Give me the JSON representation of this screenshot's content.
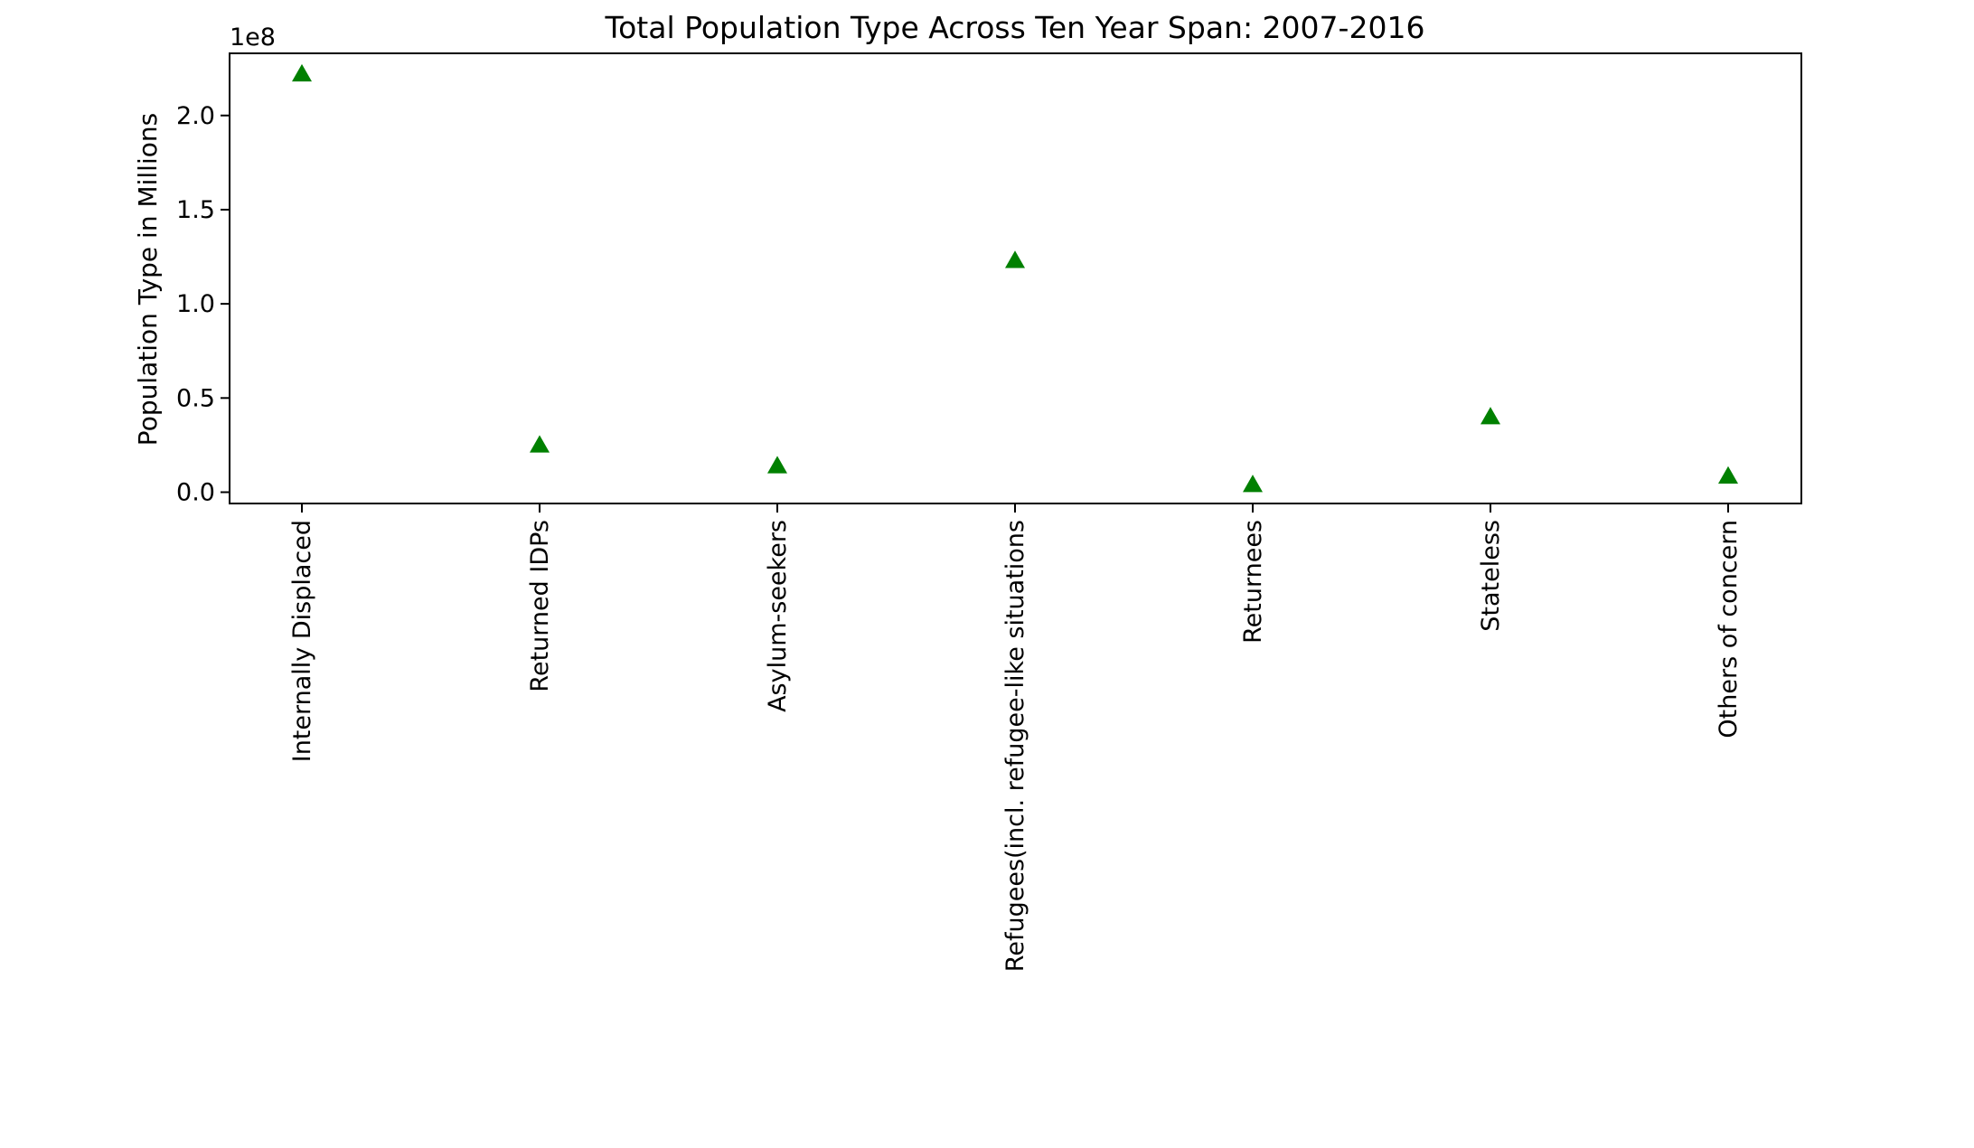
{
  "chart_data": {
    "type": "scatter",
    "title": "Total Population Type Across Ten Year Span: 2007-2016",
    "ylabel": "Population Type in Millions",
    "xlabel": "",
    "y_offset_label": "1e8",
    "marker": "triangle",
    "marker_color": "#008000",
    "grid": false,
    "categories": [
      "Internally Displaced",
      "Returned IDPs",
      "Asylum-seekers",
      "Refugees(incl. refugee-like situations",
      "Returnees",
      "Stateless",
      "Others of concern"
    ],
    "values": [
      222000000,
      25000000,
      14000000,
      123000000,
      4000000,
      40000000,
      8500000
    ],
    "ylim": [
      -6000000.0,
      233000000.0
    ],
    "yticks": [
      0,
      50000000.0,
      100000000.0,
      150000000.0,
      200000000.0
    ],
    "ytick_labels": [
      "0.0",
      "0.5",
      "1.0",
      "1.5",
      "2.0"
    ]
  }
}
